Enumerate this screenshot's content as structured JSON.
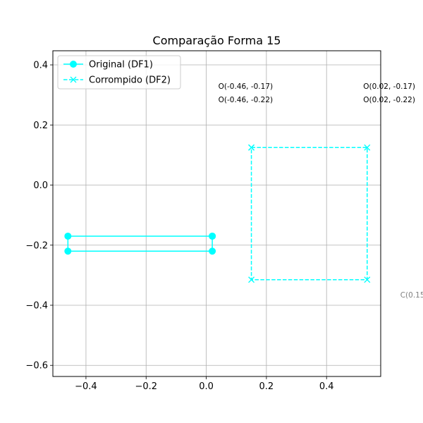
{
  "chart_data": {
    "type": "line",
    "title": "Comparação Forma 15",
    "xlabel": "",
    "ylabel": "",
    "xlim": [
      -0.51,
      0.58
    ],
    "ylim": [
      -0.637,
      0.447
    ],
    "xticks": [
      -0.4,
      -0.2,
      0.0,
      0.2,
      0.4
    ],
    "xtick_labels": [
      "−0.4",
      "−0.2",
      "0.0",
      "0.2",
      "0.4"
    ],
    "yticks": [
      -0.6,
      -0.4,
      -0.2,
      0.0,
      0.2,
      0.4
    ],
    "ytick_labels": [
      "−0.6",
      "−0.4",
      "−0.2",
      "0.0",
      "0.2",
      "0.4"
    ],
    "grid": true,
    "legend_position": "upper left",
    "series": [
      {
        "name": "Original (DF1)",
        "color": "#00ffff",
        "style": "solid",
        "marker": "circle",
        "x": [
          0.02,
          -0.46,
          -0.46,
          0.02,
          0.02
        ],
        "y": [
          -0.17,
          -0.17,
          -0.22,
          -0.22,
          -0.17
        ]
      },
      {
        "name": "Corrompido (DF2)",
        "color": "#00ffff",
        "style": "dashed",
        "marker": "x",
        "x": [
          0.15,
          0.535,
          0.535,
          0.15,
          0.15
        ],
        "y": [
          0.125,
          0.125,
          -0.315,
          -0.315,
          0.125
        ]
      }
    ],
    "annotations": [
      {
        "text": "O(-0.46, -0.17)",
        "x": 0.04,
        "y": 0.33,
        "color": "#000000"
      },
      {
        "text": "O(-0.46, -0.22)",
        "x": 0.04,
        "y": 0.285,
        "color": "#000000"
      },
      {
        "text": "O(0.02, -0.17)",
        "x": 0.522,
        "y": 0.33,
        "color": "#000000"
      },
      {
        "text": "O(0.02, -0.22)",
        "x": 0.522,
        "y": 0.285,
        "color": "#000000"
      },
      {
        "text": "C(0.15",
        "x": 0.645,
        "y": -0.365,
        "color": "#808080"
      }
    ]
  }
}
